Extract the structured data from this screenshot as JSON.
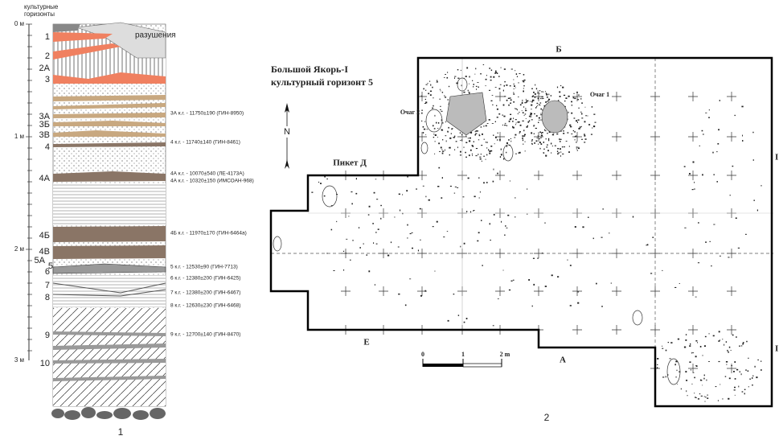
{
  "column": {
    "header": [
      "культурные",
      "горизонты"
    ],
    "depths": [
      "0 м",
      "1 м",
      "2 м",
      "3 м"
    ],
    "horizons": [
      "1",
      "2",
      "2А",
      "3",
      "3А",
      "3Б",
      "3В",
      "4",
      "4А",
      "4Б",
      "4В",
      "5А",
      "5",
      "6",
      "7",
      "8",
      "9",
      "10"
    ],
    "destruction_label": "разушения",
    "dates": [
      "3А к.г. - 11750±190 (ГИН-8950)",
      "4 к.г. - 11740±140 (ГИН-8461)",
      "4А к.г. - 10070±540 (ЛЕ-4173А)",
      "4А к.г. - 10320±150 (ИМСОАН-968)",
      "4Б к.г. - 11970±170 (ГИН-6464а)",
      "5 к.г. - 12530±90 (ГИН-7713)",
      "6 к.г. - 12380±200 (ГИН-6425)",
      "7 к.г. - 12380±200 (ГИН-6467)",
      "8 к.г. - 12630±230 (ГИН-6468)",
      "9 к.г. - 12700±140 (ГИН-8470)"
    ],
    "caption": "1"
  },
  "plan": {
    "title": [
      "Большой Якорь-I",
      "культурный горизонт 5"
    ],
    "north": "N",
    "labels": {
      "top": "Б",
      "left_bottom": "Е",
      "bottom": "А",
      "right_upper": "I",
      "right_lower": "I",
      "picket": "Пикет Д",
      "hearth2": "Очаг 2",
      "hearth1": "Очаг 1"
    },
    "scale": [
      "0",
      "1",
      "2 m"
    ],
    "caption": "2"
  }
}
